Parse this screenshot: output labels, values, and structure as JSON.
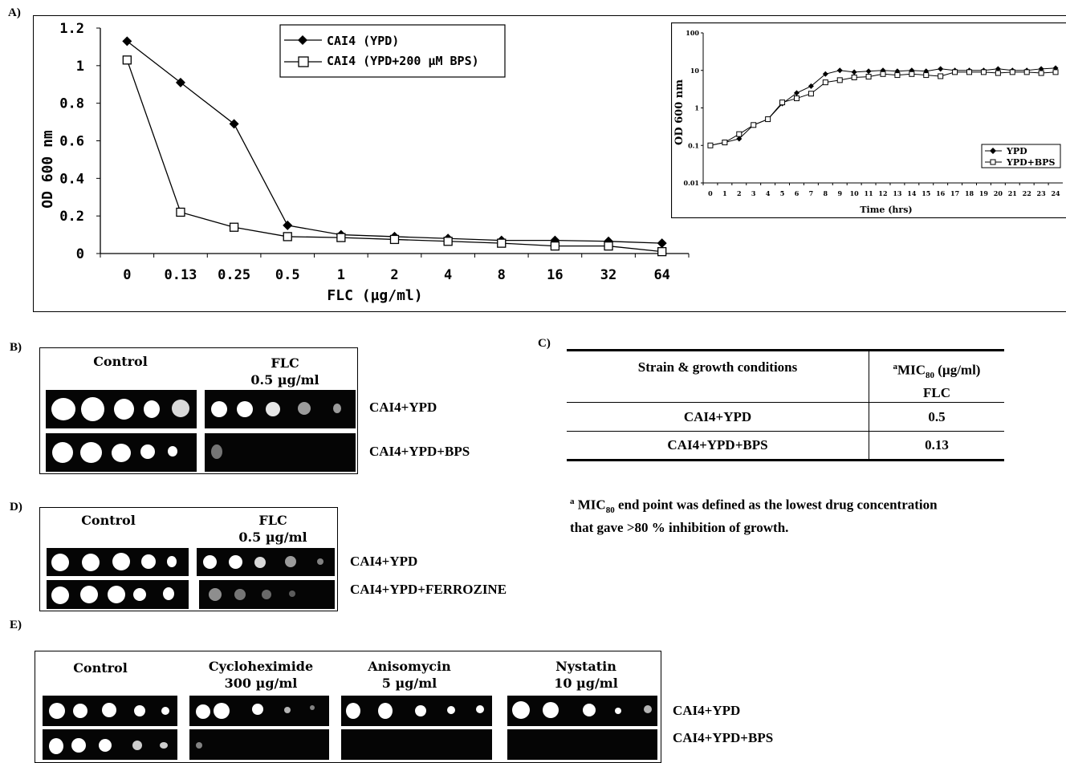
{
  "panels": {
    "a": "A)",
    "b": "B)",
    "c": "C)",
    "d": "D)",
    "e": "E)"
  },
  "chart_data": [
    {
      "type": "line",
      "xlabel": "FLC  (µg/ml)",
      "ylabel": "OD 600 nm",
      "categories": [
        "0",
        "0.13",
        "0.25",
        "0.5",
        "1",
        "2",
        "4",
        "8",
        "16",
        "32",
        "64"
      ],
      "yticks": [
        "0",
        "0.2",
        "0.4",
        "0.6",
        "0.8",
        "1",
        "1.2"
      ],
      "ylim": [
        0,
        1.2
      ],
      "legend_position": "top-center",
      "series": [
        {
          "name": "CAI4 (YPD)",
          "marker": "filled-diamond",
          "values": [
            1.13,
            0.91,
            0.69,
            0.15,
            0.1,
            0.09,
            0.08,
            0.07,
            0.07,
            0.065,
            0.055
          ]
        },
        {
          "name": "CAI4 (YPD+200 µM BPS)",
          "marker": "open-square",
          "values": [
            1.03,
            0.22,
            0.14,
            0.09,
            0.085,
            0.075,
            0.065,
            0.055,
            0.04,
            0.04,
            0.01
          ]
        }
      ]
    },
    {
      "type": "line",
      "xlabel": "Time (hrs)",
      "ylabel": "OD 600 nm",
      "yscale": "log",
      "yticks": [
        "0.01",
        "0.1",
        "1",
        "10",
        "100"
      ],
      "ylim": [
        0.01,
        100
      ],
      "categories": [
        "0",
        "1",
        "2",
        "3",
        "4",
        "5",
        "6",
        "7",
        "8",
        "9",
        "10",
        "11",
        "12",
        "13",
        "14",
        "15",
        "16",
        "17",
        "18",
        "19",
        "20",
        "21",
        "22",
        "23",
        "24"
      ],
      "legend_position": "bottom-right",
      "series": [
        {
          "name": "YPD",
          "marker": "filled-diamond",
          "values": [
            0.1,
            0.12,
            0.15,
            0.35,
            0.5,
            1.3,
            2.5,
            3.8,
            8,
            10,
            9,
            9.5,
            10,
            9.5,
            10,
            9.5,
            11,
            10,
            10,
            10,
            11,
            10,
            10,
            11,
            11.5
          ]
        },
        {
          "name": "YPD+BPS",
          "marker": "open-square",
          "values": [
            0.1,
            0.12,
            0.2,
            0.35,
            0.5,
            1.4,
            1.8,
            2.4,
            4.8,
            5.5,
            6.5,
            6.8,
            8,
            7.5,
            8,
            7.5,
            7,
            9,
            9,
            9,
            8.5,
            9,
            9,
            8.5,
            9
          ]
        }
      ]
    }
  ],
  "spot_panels": {
    "b": {
      "control": "Control",
      "flc": "FLC",
      "flc_conc": "0.5 µg/ml",
      "row1": "CAI4+YPD",
      "row2": "CAI4+YPD+BPS"
    },
    "d": {
      "control": "Control",
      "flc": "FLC",
      "flc_conc": "0.5 µg/ml",
      "row1": "CAI4+YPD",
      "row2": "CAI4+YPD+FERROZINE"
    },
    "e": {
      "control": "Control",
      "c1": "Cycloheximide",
      "c1_conc": "300 µg/ml",
      "c2": "Anisomycin",
      "c2_conc": "5 µg/ml",
      "c3": "Nystatin",
      "c3_conc": "10 µg/ml",
      "row1": "CAI4+YPD",
      "row2": "CAI4+YPD+BPS"
    }
  },
  "mic_table": {
    "col1": "Strain & growth conditions",
    "col2_sup": "a",
    "col2_main": "MIC",
    "col2_sub": "80",
    "col2_rest": "(µg/ml)",
    "col2_line2": "FLC",
    "rows": [
      {
        "strain": "CAI4+YPD",
        "value": "0.5"
      },
      {
        "strain": "CAI4+YPD+BPS",
        "value": "0.13"
      }
    ],
    "footnote_sup": "a",
    "footnote_main": "MIC",
    "footnote_sub": "80",
    "footnote_line1": "end point was defined as the lowest drug concentration",
    "footnote_line2": "that gave >80 % inhibition of growth."
  }
}
